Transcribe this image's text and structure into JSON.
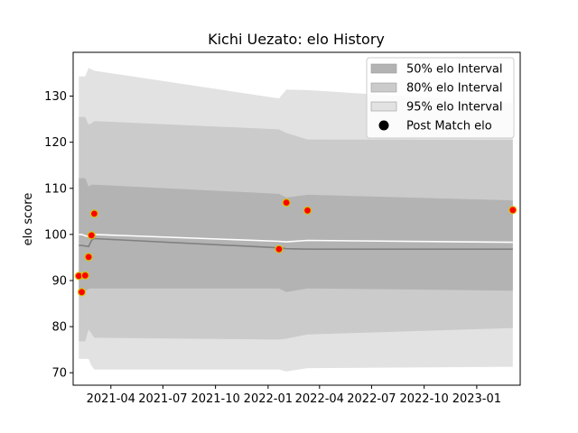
{
  "chart_data": {
    "type": "line",
    "title": "Kichi Uezato: elo History",
    "xlabel": "",
    "ylabel": "elo score",
    "x_ticks": [
      "2021-04",
      "2021-07",
      "2021-10",
      "2022-01",
      "2022-04",
      "2022-07",
      "2022-10",
      "2023-01"
    ],
    "y_ticks": [
      70,
      80,
      90,
      100,
      110,
      120,
      130
    ],
    "xlim": [
      "2021-01-25",
      "2023-03-18"
    ],
    "ylim": [
      67.3,
      139.5
    ],
    "grid": false,
    "legend_position": "top-right",
    "legend": [
      {
        "label": "50% elo Interval",
        "kind": "band",
        "color": "#b3b3b3"
      },
      {
        "label": "80% elo Interval",
        "kind": "band",
        "color": "#cbcbcb"
      },
      {
        "label": "95% elo Interval",
        "kind": "band",
        "color": "#e2e2e2"
      },
      {
        "label": "Post Match elo",
        "kind": "marker",
        "color": "#000000"
      }
    ],
    "x": [
      "2021-02-04",
      "2021-02-09",
      "2021-02-15",
      "2021-02-21",
      "2021-02-26",
      "2021-03-03",
      "2022-01-20",
      "2022-02-02",
      "2022-03-11",
      "2023-03-05"
    ],
    "series": [
      {
        "name": "95% elo Interval",
        "kind": "band",
        "color": "#e2e2e2",
        "lower": [
          73.0,
          73.0,
          73.0,
          73.0,
          71.5,
          70.7,
          70.7,
          70.3,
          71.0,
          71.3
        ],
        "upper": [
          134.3,
          134.3,
          134.3,
          136.1,
          135.8,
          135.5,
          129.5,
          131.4,
          131.3,
          128.5
        ]
      },
      {
        "name": "80% elo Interval",
        "kind": "band",
        "color": "#cbcbcb",
        "lower": [
          76.8,
          76.8,
          76.8,
          79.4,
          78.5,
          77.6,
          77.2,
          77.4,
          78.3,
          79.7
        ],
        "upper": [
          125.5,
          125.5,
          125.5,
          123.8,
          124.1,
          124.6,
          122.8,
          122.0,
          120.6,
          120.5
        ]
      },
      {
        "name": "50% elo Interval",
        "kind": "band",
        "color": "#b3b3b3",
        "lower": [
          87.8,
          87.8,
          87.8,
          88.2,
          88.3,
          88.3,
          88.3,
          87.5,
          88.3,
          87.8
        ],
        "upper": [
          112.2,
          112.2,
          112.2,
          110.4,
          110.8,
          110.8,
          108.8,
          108.0,
          108.6,
          107.4
        ]
      },
      {
        "name": "mean",
        "kind": "line",
        "color": "#ffffff",
        "values": [
          100.0,
          100.0,
          99.7,
          99.5,
          99.5,
          100.0,
          98.5,
          98.4,
          98.7,
          98.3
        ]
      },
      {
        "name": "median",
        "kind": "line",
        "color": "#808080",
        "values": [
          97.6,
          97.6,
          97.5,
          97.4,
          98.7,
          99.1,
          97.1,
          96.9,
          96.8,
          96.8
        ]
      },
      {
        "name": "Post Match elo",
        "kind": "points",
        "color": "#ff0000",
        "edgecolor": "#d4c300",
        "values": [
          91.0,
          87.5,
          91.1,
          95.1,
          99.8,
          104.5,
          96.8,
          106.9,
          105.2,
          105.3
        ]
      }
    ]
  }
}
